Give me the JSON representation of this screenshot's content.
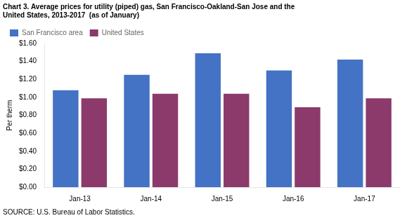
{
  "chart_data": {
    "type": "bar",
    "title": "Chart 3. Average prices for utility (piped) gas, San Francisco-Oakland-San Jose and the\nUnited States, 2013-2017  (as of January)",
    "ylabel": "Per therm",
    "source": "SOURCE: U.S. Bureau of Labor Statistics.",
    "categories": [
      "Jan-13",
      "Jan-14",
      "Jan-15",
      "Jan-16",
      "Jan-17"
    ],
    "series": [
      {
        "name": "San Francisco area",
        "color": "#4472C4",
        "values": [
          1.08,
          1.25,
          1.49,
          1.3,
          1.42
        ]
      },
      {
        "name": "United States",
        "color": "#8B3A6B",
        "values": [
          0.99,
          1.04,
          1.04,
          0.89,
          0.99
        ]
      }
    ],
    "ylim": [
      0,
      1.6
    ],
    "yticks": [
      {
        "value": 0.0,
        "label": "$0.00"
      },
      {
        "value": 0.2,
        "label": "$0.20"
      },
      {
        "value": 0.4,
        "label": "$0.40"
      },
      {
        "value": 0.6,
        "label": "$0.60"
      },
      {
        "value": 0.8,
        "label": "$0.80"
      },
      {
        "value": 1.0,
        "label": "$1.00"
      },
      {
        "value": 1.2,
        "label": "$1.20"
      },
      {
        "value": 1.4,
        "label": "$1.40"
      },
      {
        "value": 1.6,
        "label": "$1.60"
      }
    ],
    "grid": false,
    "legend": "upper left"
  }
}
